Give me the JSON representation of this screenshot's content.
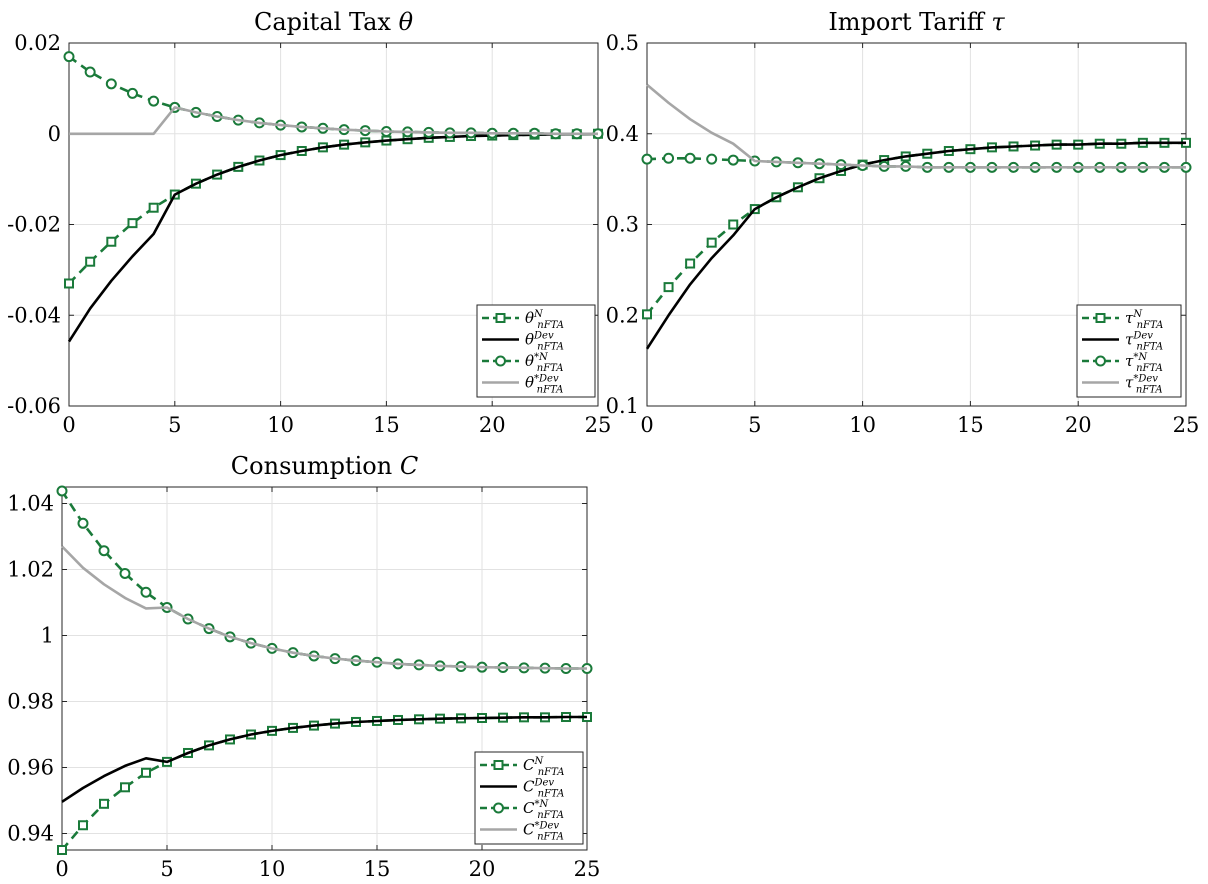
{
  "colors": {
    "green": "#1a7a3a",
    "black": "#000000",
    "gray": "#a6a6a6",
    "grid": "#e2e2e2"
  },
  "chart_data": [
    {
      "type": "line",
      "title": "Capital Tax θ",
      "grid": true,
      "legend_position": "bottom-right",
      "xlim": [
        0,
        25
      ],
      "ylim": [
        -0.06,
        0.02
      ],
      "xticks": [
        "0",
        "5",
        "10",
        "15",
        "20",
        "25"
      ],
      "yticks": [
        "-0.06",
        "-0.04",
        "-0.02",
        "0",
        "0.02"
      ],
      "x": [
        0,
        1,
        2,
        3,
        4,
        5,
        6,
        7,
        8,
        9,
        10,
        11,
        12,
        13,
        14,
        15,
        16,
        17,
        18,
        19,
        20,
        21,
        22,
        23,
        24,
        25
      ],
      "series": [
        {
          "name": "θ^N_nFTA",
          "style": "green-dashed-square",
          "values": [
            -0.033,
            -0.0282,
            -0.0238,
            -0.0197,
            -0.0163,
            -0.0134,
            -0.011,
            -0.009,
            -0.0073,
            -0.0059,
            -0.0047,
            -0.0038,
            -0.003,
            -0.0024,
            -0.0019,
            -0.0015,
            -0.0012,
            -0.0009,
            -0.0007,
            -0.0005,
            -0.0004,
            -0.0003,
            -0.0002,
            -0.0001,
            -0.0001,
            0
          ]
        },
        {
          "name": "θ^Dev_nFTA",
          "style": "black-solid",
          "values": [
            -0.0458,
            -0.0385,
            -0.0324,
            -0.027,
            -0.0221,
            -0.0134,
            -0.011,
            -0.009,
            -0.0073,
            -0.0059,
            -0.0047,
            -0.0038,
            -0.003,
            -0.0024,
            -0.0019,
            -0.0015,
            -0.0012,
            -0.0009,
            -0.0007,
            -0.0005,
            -0.0004,
            -0.0003,
            -0.0002,
            -0.0001,
            -0.0001,
            0
          ]
        },
        {
          "name": "θ^*N_nFTA",
          "style": "green-dashed-circle",
          "values": [
            0.017,
            0.0136,
            0.011,
            0.0089,
            0.0072,
            0.0058,
            0.0047,
            0.0038,
            0.003,
            0.0024,
            0.0019,
            0.0015,
            0.0012,
            0.0009,
            0.0007,
            0.0005,
            0.0004,
            0.0003,
            0.0002,
            0.0002,
            0.0001,
            0.0001,
            0.0001,
            0,
            0,
            0
          ]
        },
        {
          "name": "θ^*Dev_nFTA",
          "style": "gray-solid",
          "values": [
            0,
            0,
            0,
            0,
            0,
            0.0058,
            0.0047,
            0.0038,
            0.003,
            0.0024,
            0.0019,
            0.0015,
            0.0012,
            0.0009,
            0.0007,
            0.0005,
            0.0004,
            0.0003,
            0.0002,
            0.0002,
            0.0001,
            0.0001,
            0.0001,
            0,
            0,
            0
          ]
        }
      ]
    },
    {
      "type": "line",
      "title": "Import Tariff τ",
      "grid": true,
      "legend_position": "bottom-right",
      "xlim": [
        0,
        25
      ],
      "ylim": [
        0.1,
        0.5
      ],
      "xticks": [
        "0",
        "5",
        "10",
        "15",
        "20",
        "25"
      ],
      "yticks": [
        "0.1",
        "0.2",
        "0.3",
        "0.4",
        "0.5"
      ],
      "x": [
        0,
        1,
        2,
        3,
        4,
        5,
        6,
        7,
        8,
        9,
        10,
        11,
        12,
        13,
        14,
        15,
        16,
        17,
        18,
        19,
        20,
        21,
        22,
        23,
        24,
        25
      ],
      "series": [
        {
          "name": "τ^N_nFTA",
          "style": "green-dashed-square",
          "values": [
            0.201,
            0.231,
            0.257,
            0.28,
            0.3,
            0.317,
            0.33,
            0.341,
            0.351,
            0.359,
            0.366,
            0.371,
            0.375,
            0.378,
            0.381,
            0.383,
            0.385,
            0.386,
            0.387,
            0.388,
            0.388,
            0.389,
            0.389,
            0.39,
            0.39,
            0.39
          ]
        },
        {
          "name": "τ^Dev_nFTA",
          "style": "black-solid",
          "values": [
            0.163,
            0.2,
            0.234,
            0.263,
            0.288,
            0.317,
            0.33,
            0.341,
            0.351,
            0.359,
            0.366,
            0.371,
            0.375,
            0.378,
            0.381,
            0.383,
            0.385,
            0.386,
            0.387,
            0.388,
            0.388,
            0.389,
            0.389,
            0.39,
            0.39,
            0.39
          ]
        },
        {
          "name": "τ^*N_nFTA",
          "style": "green-dashed-circle",
          "values": [
            0.372,
            0.373,
            0.373,
            0.372,
            0.371,
            0.37,
            0.369,
            0.368,
            0.367,
            0.366,
            0.365,
            0.364,
            0.364,
            0.363,
            0.363,
            0.363,
            0.363,
            0.363,
            0.363,
            0.363,
            0.363,
            0.363,
            0.363,
            0.363,
            0.363,
            0.363
          ]
        },
        {
          "name": "τ^*Dev_nFTA",
          "style": "gray-solid",
          "values": [
            0.454,
            0.434,
            0.416,
            0.401,
            0.389,
            0.37,
            0.369,
            0.368,
            0.367,
            0.366,
            0.365,
            0.364,
            0.364,
            0.363,
            0.363,
            0.363,
            0.363,
            0.363,
            0.363,
            0.363,
            0.363,
            0.363,
            0.363,
            0.363,
            0.363,
            0.363
          ]
        }
      ]
    },
    {
      "type": "line",
      "title": "Consumption C",
      "grid": true,
      "legend_position": "bottom-right",
      "xlim": [
        0,
        25
      ],
      "ylim": [
        0.935,
        1.045
      ],
      "xticks": [
        "0",
        "5",
        "10",
        "15",
        "20",
        "25"
      ],
      "yticks": [
        "0.94",
        "0.96",
        "0.98",
        "1",
        "1.02",
        "1.04"
      ],
      "x": [
        0,
        1,
        2,
        3,
        4,
        5,
        6,
        7,
        8,
        9,
        10,
        11,
        12,
        13,
        14,
        15,
        16,
        17,
        18,
        19,
        20,
        21,
        22,
        23,
        24,
        25
      ],
      "series": [
        {
          "name": "C^N_nFTA",
          "style": "green-dashed-square",
          "values": [
            0.935,
            0.9425,
            0.949,
            0.954,
            0.9584,
            0.9617,
            0.9644,
            0.9667,
            0.9685,
            0.97,
            0.9711,
            0.972,
            0.9727,
            0.9733,
            0.9738,
            0.9741,
            0.9744,
            0.9746,
            0.9748,
            0.9749,
            0.975,
            0.9751,
            0.9752,
            0.9752,
            0.9753,
            0.9753
          ]
        },
        {
          "name": "C^Dev_nFTA",
          "style": "black-solid",
          "values": [
            0.9496,
            0.9538,
            0.9574,
            0.9605,
            0.9628,
            0.9617,
            0.9644,
            0.9667,
            0.9685,
            0.97,
            0.9711,
            0.972,
            0.9727,
            0.9733,
            0.9738,
            0.9741,
            0.9744,
            0.9746,
            0.9748,
            0.9749,
            0.975,
            0.9751,
            0.9752,
            0.9752,
            0.9753,
            0.9753
          ]
        },
        {
          "name": "C^*N_nFTA",
          "style": "green-dashed-circle",
          "values": [
            1.0438,
            1.034,
            1.0257,
            1.0188,
            1.0131,
            1.0085,
            1.005,
            1.0021,
            0.9996,
            0.9977,
            0.9961,
            0.9948,
            0.9938,
            0.993,
            0.9924,
            0.9919,
            0.9914,
            0.9911,
            0.9908,
            0.9906,
            0.9904,
            0.9903,
            0.9902,
            0.9901,
            0.99,
            0.99
          ]
        },
        {
          "name": "C^*Dev_nFTA",
          "style": "gray-solid",
          "values": [
            1.027,
            1.0205,
            1.0155,
            1.0114,
            1.0082,
            1.0085,
            1.005,
            1.0021,
            0.9996,
            0.9977,
            0.9961,
            0.9948,
            0.9938,
            0.993,
            0.9924,
            0.9919,
            0.9914,
            0.9911,
            0.9908,
            0.9906,
            0.9904,
            0.9903,
            0.9902,
            0.9901,
            0.99,
            0.99
          ]
        }
      ]
    }
  ],
  "legends": [
    [
      {
        "base": "θ",
        "sup": "N",
        "sub": "nFTA"
      },
      {
        "base": "θ",
        "sup": "Dev",
        "sub": "nFTA"
      },
      {
        "base": "θ",
        "sup": "*N",
        "sub": "nFTA"
      },
      {
        "base": "θ",
        "sup": "*Dev",
        "sub": "nFTA"
      }
    ],
    [
      {
        "base": "τ",
        "sup": "N",
        "sub": "nFTA"
      },
      {
        "base": "τ",
        "sup": "Dev",
        "sub": "nFTA"
      },
      {
        "base": "τ",
        "sup": "*N",
        "sub": "nFTA"
      },
      {
        "base": "τ",
        "sup": "*Dev",
        "sub": "nFTA"
      }
    ],
    [
      {
        "base": "C",
        "sup": "N",
        "sub": "nFTA"
      },
      {
        "base": "C",
        "sup": "Dev",
        "sub": "nFTA"
      },
      {
        "base": "C",
        "sup": "*N",
        "sub": "nFTA"
      },
      {
        "base": "C",
        "sup": "*Dev",
        "sub": "nFTA"
      }
    ]
  ]
}
